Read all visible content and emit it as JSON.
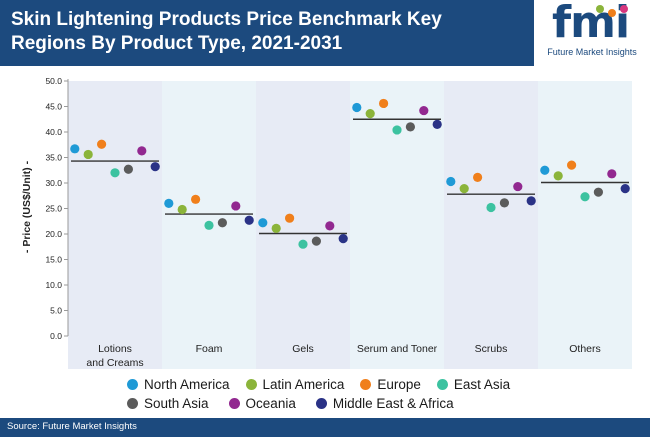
{
  "header": {
    "title": "Skin Lightening Products Price Benchmark Key Regions By Product Type, 2021-2031"
  },
  "logo": {
    "letters": "fmi",
    "subtitle": "Future Market Insights"
  },
  "footer": {
    "source": "Source: Future Market Insights"
  },
  "chart_data": {
    "type": "scatter",
    "ylabel": "- Price (US$/Unit) -",
    "ylim": [
      0,
      50
    ],
    "yticks": [
      "0.0",
      "5.0",
      "10.0",
      "15.0",
      "20.0",
      "25.0",
      "30.0",
      "35.0",
      "40.0",
      "45.0",
      "50.0"
    ],
    "grid": false,
    "legend_position": "bottom",
    "categories": [
      [
        "Lotions",
        "and Creams"
      ],
      [
        "Foam"
      ],
      [
        "Gels"
      ],
      [
        "Serum and Toner"
      ],
      [
        "Scrubs"
      ],
      [
        "Others"
      ]
    ],
    "benchmark": [
      34.3,
      23.9,
      20.1,
      42.5,
      27.8,
      30.1
    ],
    "series": [
      {
        "name": "North America",
        "color": "#1f9ad6",
        "values": [
          36.7,
          26.0,
          22.2,
          44.8,
          30.3,
          32.5
        ]
      },
      {
        "name": "Latin America",
        "color": "#8bb43a",
        "values": [
          35.6,
          24.8,
          21.1,
          43.6,
          28.9,
          31.4
        ]
      },
      {
        "name": "Europe",
        "color": "#f07f1b",
        "values": [
          37.6,
          26.8,
          23.1,
          45.6,
          31.1,
          33.5
        ]
      },
      {
        "name": "East Asia",
        "color": "#3cc2a0",
        "values": [
          32.0,
          21.7,
          18.0,
          40.4,
          25.2,
          27.3
        ]
      },
      {
        "name": "South Asia",
        "color": "#5b5b5b",
        "values": [
          32.7,
          22.2,
          18.6,
          41.0,
          26.1,
          28.2
        ]
      },
      {
        "name": "Oceania",
        "color": "#922890",
        "values": [
          36.3,
          25.5,
          21.6,
          44.2,
          29.3,
          31.8
        ]
      },
      {
        "name": "Middle East & Africa",
        "color": "#2a3286",
        "values": [
          33.2,
          22.7,
          19.1,
          41.5,
          26.5,
          28.9
        ]
      }
    ]
  }
}
